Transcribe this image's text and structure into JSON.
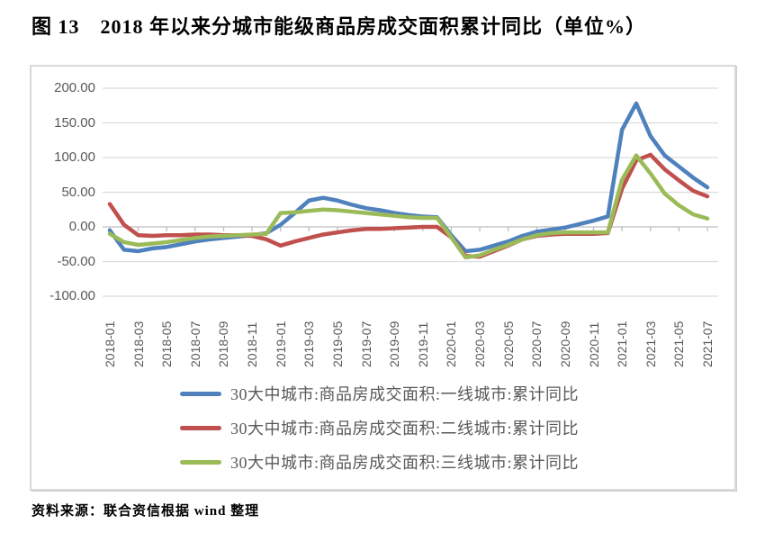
{
  "page": {
    "title": "图 13　2018 年以来分城市能级商品房成交面积累计同比（单位%）",
    "source": "资料来源：联合资信根据 wind 整理"
  },
  "chart_data": {
    "type": "line",
    "title": "2018 年以来分城市能级商品房成交面积累计同比",
    "unit": "%",
    "ylim": [
      -100,
      200
    ],
    "ytick_step": 50,
    "ytick_values": [
      200,
      150,
      100,
      50,
      0,
      -50,
      -100
    ],
    "ytick_labels": [
      "200.00",
      "150.00",
      "100.00",
      "50.00",
      "0.00",
      "-50.00",
      "-100.00"
    ],
    "x_labels": [
      "2018-01",
      "2018-03",
      "2018-05",
      "2018-07",
      "2018-09",
      "2018-11",
      "2019-01",
      "2019-03",
      "2019-05",
      "2019-07",
      "2019-09",
      "2019-11",
      "2020-01",
      "2020-03",
      "2020-05",
      "2020-07",
      "2020-09",
      "2020-11",
      "2021-01",
      "2021-03",
      "2021-05",
      "2021-07"
    ],
    "label_every": 2,
    "n_points": 43,
    "grid": "horizontal",
    "legend_position": "bottom",
    "gridline_color": "#dcdcdc",
    "axis_color": "#bfbfbf",
    "series": [
      {
        "name": "30大中城市:商品房成交面积:一线城市:累计同比",
        "color": "#4F81BD",
        "values": [
          -5,
          -33,
          -35,
          -31,
          -29,
          -25,
          -21,
          -18,
          -16,
          -14,
          -12,
          -9,
          3,
          20,
          38,
          42,
          38,
          32,
          27,
          24,
          20,
          17,
          15,
          14,
          -12,
          -35,
          -33,
          -27,
          -21,
          -13,
          -7,
          -4,
          -1,
          4,
          9,
          15,
          140,
          178,
          131,
          103,
          87,
          71,
          57
        ]
      },
      {
        "name": "30大中城市:商品房成交面积:二线城市:累计同比",
        "color": "#C0504D",
        "values": [
          33,
          3,
          -12,
          -13,
          -12,
          -12,
          -11,
          -11,
          -12,
          -12,
          -13,
          -18,
          -27,
          -21,
          -16,
          -11,
          -8,
          -5,
          -3,
          -3,
          -2,
          -1,
          0,
          0,
          -15,
          -42,
          -43,
          -35,
          -27,
          -18,
          -13,
          -11,
          -10,
          -10,
          -10,
          -9,
          55,
          96,
          104,
          83,
          67,
          52,
          44
        ]
      },
      {
        "name": "30大中城市:商品房成交面积:三线城市:累计同比",
        "color": "#9BBB59",
        "values": [
          -10,
          -22,
          -26,
          -24,
          -22,
          -19,
          -16,
          -14,
          -13,
          -12,
          -11,
          -10,
          20,
          21,
          23,
          25,
          24,
          22,
          20,
          18,
          16,
          14,
          13,
          13,
          -15,
          -44,
          -41,
          -33,
          -26,
          -18,
          -12,
          -9,
          -8,
          -8,
          -8,
          -8,
          68,
          103,
          77,
          48,
          31,
          18,
          12
        ]
      }
    ]
  }
}
